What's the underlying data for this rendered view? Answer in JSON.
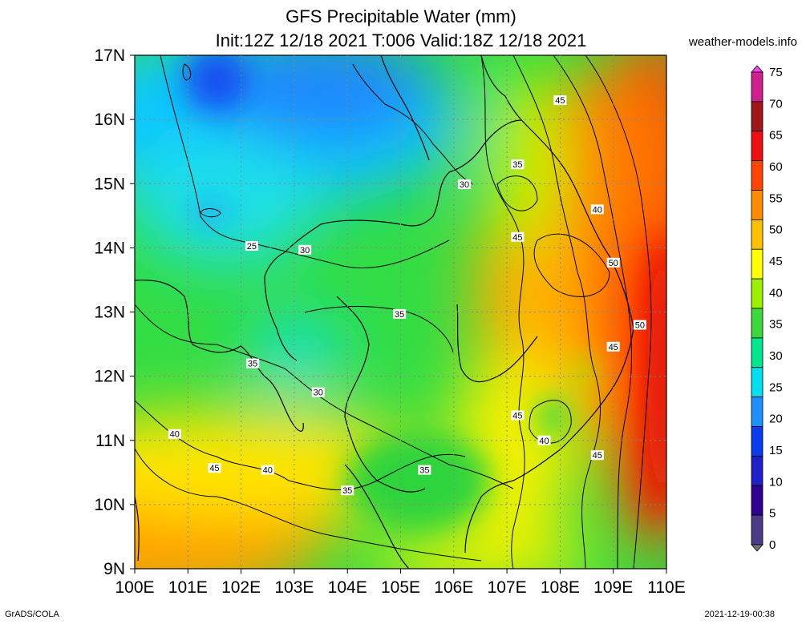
{
  "header": {
    "title_line1": "GFS Precipitable Water (mm)",
    "title_line2": "Init:12Z 12/18 2021 T:006 Valid:18Z 12/18 2021",
    "site": "weather-models.info"
  },
  "footer": {
    "left": "GrADS/COLA",
    "right": "2021-12-19-00:38"
  },
  "map": {
    "lat_labels": [
      "17N",
      "16N",
      "15N",
      "14N",
      "13N",
      "12N",
      "11N",
      "10N",
      "9N"
    ],
    "lon_labels": [
      "100E",
      "101E",
      "102E",
      "103E",
      "104E",
      "105E",
      "106E",
      "107E",
      "108E",
      "109E",
      "110E"
    ],
    "lat_range": [
      9,
      17
    ],
    "lon_range": [
      100,
      110
    ],
    "contour_labels": [
      {
        "text": "45",
        "lon": 108.0,
        "lat": 16.3
      },
      {
        "text": "35",
        "lon": 107.2,
        "lat": 15.3
      },
      {
        "text": "30",
        "lon": 106.2,
        "lat": 14.99
      },
      {
        "text": "40",
        "lon": 108.7,
        "lat": 14.6
      },
      {
        "text": "45",
        "lon": 107.2,
        "lat": 14.17
      },
      {
        "text": "25",
        "lon": 102.2,
        "lat": 14.03
      },
      {
        "text": "30",
        "lon": 103.2,
        "lat": 13.97
      },
      {
        "text": "50",
        "lon": 109.0,
        "lat": 13.77
      },
      {
        "text": "35",
        "lon": 104.98,
        "lat": 12.97
      },
      {
        "text": "50",
        "lon": 109.5,
        "lat": 12.8
      },
      {
        "text": "45",
        "lon": 109.0,
        "lat": 12.46
      },
      {
        "text": "35",
        "lon": 102.22,
        "lat": 12.2
      },
      {
        "text": "30",
        "lon": 103.45,
        "lat": 11.75
      },
      {
        "text": "45",
        "lon": 107.2,
        "lat": 11.39
      },
      {
        "text": "40",
        "lon": 100.75,
        "lat": 11.1
      },
      {
        "text": "40",
        "lon": 107.7,
        "lat": 11.0
      },
      {
        "text": "45",
        "lon": 108.7,
        "lat": 10.77
      },
      {
        "text": "45",
        "lon": 101.5,
        "lat": 10.57
      },
      {
        "text": "40",
        "lon": 102.5,
        "lat": 10.54
      },
      {
        "text": "35",
        "lon": 105.45,
        "lat": 10.54
      },
      {
        "text": "35",
        "lon": 104.0,
        "lat": 10.22
      }
    ]
  },
  "colorbar": {
    "labels": [
      "75",
      "70",
      "65",
      "60",
      "55",
      "50",
      "45",
      "40",
      "35",
      "30",
      "25",
      "20",
      "15",
      "10",
      "5",
      "0"
    ],
    "colors": [
      "#ff44ff",
      "#d02090",
      "#a01818",
      "#ee1010",
      "#ff4500",
      "#ff8c00",
      "#ffc000",
      "#ffff00",
      "#9bef00",
      "#3cd83c",
      "#00e68c",
      "#00e0f0",
      "#1e90ff",
      "#0a3cf0",
      "#2020c8",
      "#300090",
      "#4a3c86",
      "#777777"
    ]
  }
}
